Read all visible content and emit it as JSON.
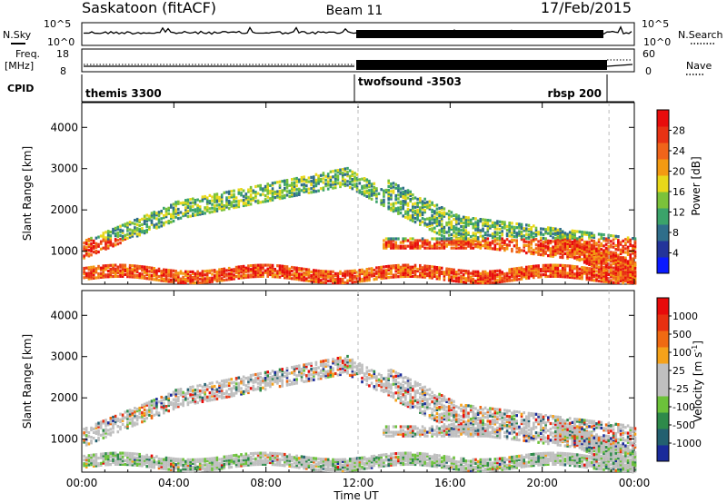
{
  "header": {
    "station": "Saskatoon (fitACF)",
    "beam": "Beam 11",
    "date": "17/Feb/2015"
  },
  "summary": {
    "nsky_label": "N.Sky",
    "nsky_ticks": [
      "10^5",
      "10^0"
    ],
    "nsearch_label": "N.Search",
    "nsearch_ticks": [
      "10^5",
      "10^0"
    ],
    "freq_label": "Freq.",
    "freq_unit": "[MHz]",
    "freq_ticks": [
      "18",
      "8"
    ],
    "nave_label": "Nave",
    "nave_ticks": [
      "60",
      "0"
    ],
    "cpid_label": "CPID",
    "cpid_segments": [
      "themis 3300",
      "twofsound -3503",
      "rbsp 200"
    ]
  },
  "chart_data": [
    {
      "type": "heatmap",
      "panel": "power",
      "xlabel": "",
      "ylabel": "Slant Range [km]",
      "x_ticks": [
        "00:00",
        "04:00",
        "08:00",
        "12:00",
        "16:00",
        "20:00",
        "00:00"
      ],
      "y_ticks": [
        1000,
        2000,
        3000,
        4000
      ],
      "ylim": [
        200,
        4600
      ],
      "xlim_hours": [
        0,
        24
      ],
      "colorbar_label": "Power [dB]",
      "colorbar_ticks": [
        "28",
        "24",
        "20",
        "16",
        "12",
        "8",
        "4"
      ],
      "colorscale": [
        "#0a1aff",
        "#23349a",
        "#2f6e8a",
        "#3ba36a",
        "#7bc23a",
        "#e8d81a",
        "#f39a12",
        "#f0641a",
        "#e83214",
        "#e80c0c"
      ]
    },
    {
      "type": "heatmap",
      "panel": "velocity",
      "xlabel": "Time UT",
      "ylabel": "Slant Range [km]",
      "x_ticks": [
        "00:00",
        "04:00",
        "08:00",
        "12:00",
        "16:00",
        "20:00",
        "00:00"
      ],
      "y_ticks": [
        1000,
        2000,
        3000,
        4000
      ],
      "ylim": [
        200,
        4600
      ],
      "xlim_hours": [
        0,
        24
      ],
      "colorbar_label": "Velocity [m s",
      "colorbar_label_sup": "-1",
      "colorbar_label_end": "]",
      "colorbar_ticks": [
        "1000",
        "500",
        "100",
        "25",
        "-25",
        "-100",
        "-500",
        "-1000"
      ],
      "colorscale": [
        "#1a2a9a",
        "#236070",
        "#2e8a4a",
        "#6cc23a",
        "#bfbfbf",
        "#bfbfbf",
        "#f5a21a",
        "#f06a12",
        "#e83010",
        "#e80a0a"
      ]
    }
  ]
}
